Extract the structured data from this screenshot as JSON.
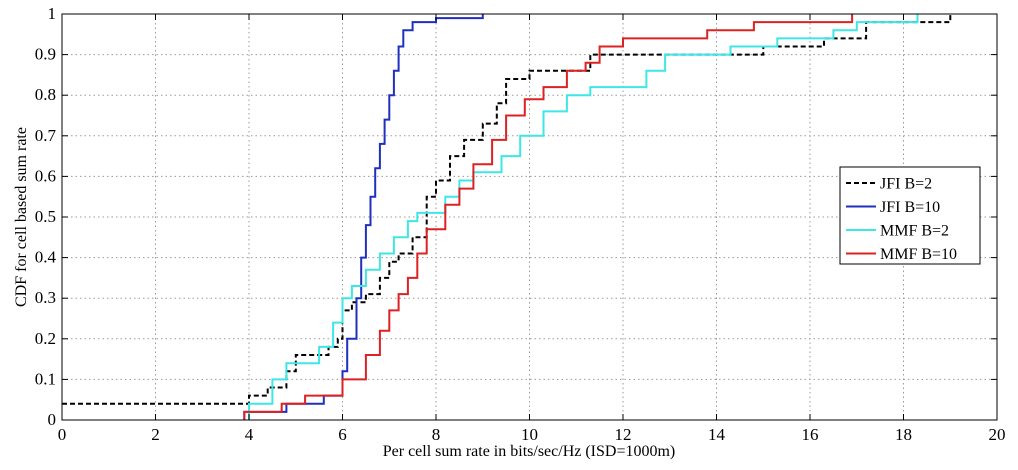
{
  "chart_data": {
    "type": "line",
    "subtype": "step-cdf",
    "title": "",
    "xlabel": "Per cell sum rate in bits/sec/Hz (ISD=1000m)",
    "ylabel": "CDF for cell based sum rate",
    "xlim": [
      0,
      20
    ],
    "ylim": [
      0,
      1
    ],
    "xticks": [
      0,
      2,
      4,
      6,
      8,
      10,
      12,
      14,
      16,
      18,
      20
    ],
    "yticks": [
      0,
      0.1,
      0.2,
      0.3,
      0.4,
      0.5,
      0.6,
      0.7,
      0.8,
      0.9,
      1
    ],
    "grid": true,
    "legend_position": "right",
    "series": [
      {
        "name": "JFI B=2",
        "color": "#000000",
        "dash": "dashed",
        "points": [
          [
            0,
            0.04
          ],
          [
            4,
            0.04
          ],
          [
            4,
            0.06
          ],
          [
            4.4,
            0.06
          ],
          [
            4.4,
            0.08
          ],
          [
            4.8,
            0.08
          ],
          [
            4.8,
            0.12
          ],
          [
            5,
            0.12
          ],
          [
            5,
            0.16
          ],
          [
            5.7,
            0.16
          ],
          [
            5.7,
            0.18
          ],
          [
            5.9,
            0.18
          ],
          [
            5.9,
            0.2
          ],
          [
            6,
            0.2
          ],
          [
            6,
            0.27
          ],
          [
            6.2,
            0.27
          ],
          [
            6.2,
            0.29
          ],
          [
            6.5,
            0.29
          ],
          [
            6.5,
            0.31
          ],
          [
            6.8,
            0.31
          ],
          [
            6.8,
            0.35
          ],
          [
            7,
            0.35
          ],
          [
            7,
            0.39
          ],
          [
            7.2,
            0.39
          ],
          [
            7.2,
            0.41
          ],
          [
            7.5,
            0.41
          ],
          [
            7.5,
            0.45
          ],
          [
            7.8,
            0.45
          ],
          [
            7.8,
            0.55
          ],
          [
            8,
            0.55
          ],
          [
            8,
            0.59
          ],
          [
            8.3,
            0.59
          ],
          [
            8.3,
            0.65
          ],
          [
            8.6,
            0.65
          ],
          [
            8.6,
            0.69
          ],
          [
            9,
            0.69
          ],
          [
            9,
            0.73
          ],
          [
            9.3,
            0.73
          ],
          [
            9.3,
            0.78
          ],
          [
            9.5,
            0.78
          ],
          [
            9.5,
            0.84
          ],
          [
            10,
            0.84
          ],
          [
            10,
            0.86
          ],
          [
            11.3,
            0.86
          ],
          [
            11.3,
            0.9
          ],
          [
            15,
            0.9
          ],
          [
            15,
            0.92
          ],
          [
            16.3,
            0.92
          ],
          [
            16.3,
            0.94
          ],
          [
            17.2,
            0.94
          ],
          [
            17.2,
            0.98
          ],
          [
            19,
            0.98
          ],
          [
            19,
            1
          ]
        ]
      },
      {
        "name": "JFI B=10",
        "color": "#1f2fbf",
        "dash": "solid",
        "points": [
          [
            3.9,
            0
          ],
          [
            3.9,
            0.02
          ],
          [
            4.8,
            0.02
          ],
          [
            4.8,
            0.04
          ],
          [
            5.6,
            0.04
          ],
          [
            5.6,
            0.06
          ],
          [
            6,
            0.06
          ],
          [
            6,
            0.12
          ],
          [
            6.1,
            0.12
          ],
          [
            6.1,
            0.2
          ],
          [
            6.3,
            0.2
          ],
          [
            6.3,
            0.3
          ],
          [
            6.4,
            0.3
          ],
          [
            6.4,
            0.4
          ],
          [
            6.5,
            0.4
          ],
          [
            6.5,
            0.48
          ],
          [
            6.6,
            0.48
          ],
          [
            6.6,
            0.55
          ],
          [
            6.7,
            0.55
          ],
          [
            6.7,
            0.62
          ],
          [
            6.8,
            0.62
          ],
          [
            6.8,
            0.68
          ],
          [
            6.9,
            0.68
          ],
          [
            6.9,
            0.74
          ],
          [
            7,
            0.74
          ],
          [
            7,
            0.8
          ],
          [
            7.1,
            0.8
          ],
          [
            7.1,
            0.86
          ],
          [
            7.2,
            0.86
          ],
          [
            7.2,
            0.92
          ],
          [
            7.3,
            0.92
          ],
          [
            7.3,
            0.96
          ],
          [
            7.5,
            0.96
          ],
          [
            7.5,
            0.98
          ],
          [
            8,
            0.98
          ],
          [
            8,
            0.99
          ],
          [
            9,
            0.99
          ],
          [
            9,
            1
          ]
        ]
      },
      {
        "name": "MMF B=2",
        "color": "#3ee6e6",
        "dash": "solid",
        "points": [
          [
            4,
            0
          ],
          [
            4,
            0.04
          ],
          [
            4.5,
            0.04
          ],
          [
            4.5,
            0.1
          ],
          [
            4.8,
            0.1
          ],
          [
            4.8,
            0.14
          ],
          [
            5.5,
            0.14
          ],
          [
            5.5,
            0.18
          ],
          [
            5.8,
            0.18
          ],
          [
            5.8,
            0.24
          ],
          [
            6,
            0.24
          ],
          [
            6,
            0.3
          ],
          [
            6.2,
            0.3
          ],
          [
            6.2,
            0.33
          ],
          [
            6.5,
            0.33
          ],
          [
            6.5,
            0.37
          ],
          [
            6.8,
            0.37
          ],
          [
            6.8,
            0.41
          ],
          [
            7.1,
            0.41
          ],
          [
            7.1,
            0.45
          ],
          [
            7.4,
            0.45
          ],
          [
            7.4,
            0.49
          ],
          [
            7.6,
            0.49
          ],
          [
            7.6,
            0.51
          ],
          [
            8.2,
            0.51
          ],
          [
            8.2,
            0.55
          ],
          [
            8.5,
            0.55
          ],
          [
            8.5,
            0.59
          ],
          [
            8.8,
            0.59
          ],
          [
            8.8,
            0.61
          ],
          [
            9.4,
            0.61
          ],
          [
            9.4,
            0.65
          ],
          [
            9.8,
            0.65
          ],
          [
            9.8,
            0.7
          ],
          [
            10.3,
            0.7
          ],
          [
            10.3,
            0.76
          ],
          [
            10.8,
            0.76
          ],
          [
            10.8,
            0.8
          ],
          [
            11.3,
            0.8
          ],
          [
            11.3,
            0.82
          ],
          [
            12.5,
            0.82
          ],
          [
            12.5,
            0.86
          ],
          [
            12.9,
            0.86
          ],
          [
            12.9,
            0.9
          ],
          [
            14.3,
            0.9
          ],
          [
            14.3,
            0.92
          ],
          [
            15.3,
            0.92
          ],
          [
            15.3,
            0.94
          ],
          [
            16.5,
            0.94
          ],
          [
            16.5,
            0.96
          ],
          [
            17,
            0.96
          ],
          [
            17,
            0.98
          ],
          [
            18.3,
            0.98
          ],
          [
            18.3,
            1
          ]
        ]
      },
      {
        "name": "MMF B=10",
        "color": "#dd2222",
        "dash": "solid",
        "points": [
          [
            3.9,
            0
          ],
          [
            3.9,
            0.02
          ],
          [
            4.7,
            0.02
          ],
          [
            4.7,
            0.04
          ],
          [
            5.2,
            0.04
          ],
          [
            5.2,
            0.06
          ],
          [
            6,
            0.06
          ],
          [
            6,
            0.1
          ],
          [
            6.5,
            0.1
          ],
          [
            6.5,
            0.16
          ],
          [
            6.8,
            0.16
          ],
          [
            6.8,
            0.22
          ],
          [
            7,
            0.22
          ],
          [
            7,
            0.27
          ],
          [
            7.2,
            0.27
          ],
          [
            7.2,
            0.31
          ],
          [
            7.4,
            0.31
          ],
          [
            7.4,
            0.35
          ],
          [
            7.6,
            0.35
          ],
          [
            7.6,
            0.41
          ],
          [
            7.8,
            0.41
          ],
          [
            7.8,
            0.47
          ],
          [
            8.2,
            0.47
          ],
          [
            8.2,
            0.53
          ],
          [
            8.5,
            0.53
          ],
          [
            8.5,
            0.57
          ],
          [
            8.8,
            0.57
          ],
          [
            8.8,
            0.63
          ],
          [
            9.2,
            0.63
          ],
          [
            9.2,
            0.69
          ],
          [
            9.5,
            0.69
          ],
          [
            9.5,
            0.75
          ],
          [
            9.9,
            0.75
          ],
          [
            9.9,
            0.79
          ],
          [
            10.3,
            0.79
          ],
          [
            10.3,
            0.82
          ],
          [
            10.8,
            0.82
          ],
          [
            10.8,
            0.86
          ],
          [
            11.2,
            0.86
          ],
          [
            11.2,
            0.88
          ],
          [
            11.5,
            0.88
          ],
          [
            11.5,
            0.92
          ],
          [
            12,
            0.92
          ],
          [
            12,
            0.94
          ],
          [
            13.8,
            0.94
          ],
          [
            13.8,
            0.96
          ],
          [
            14.8,
            0.96
          ],
          [
            14.8,
            0.98
          ],
          [
            16.9,
            0.98
          ],
          [
            16.9,
            1
          ]
        ]
      }
    ]
  }
}
